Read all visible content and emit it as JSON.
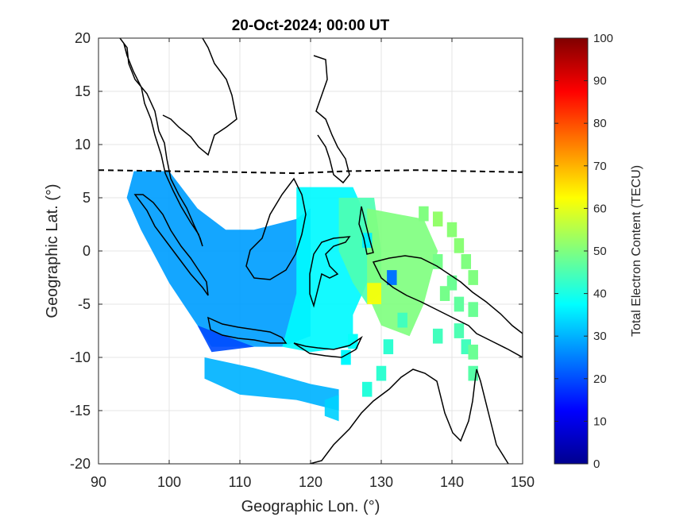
{
  "chart_data": {
    "type": "heatmap",
    "title": "20-Oct-2024; 00:00 UT",
    "xlabel": "Geographic Lon. (°)",
    "ylabel": "Geographic Lat. (°)",
    "xlim": [
      90,
      150
    ],
    "ylim": [
      -20,
      20
    ],
    "xticks": [
      "90",
      "100",
      "110",
      "120",
      "130",
      "140",
      "150"
    ],
    "yticks": [
      "20",
      "15",
      "10",
      "5",
      "0",
      "-5",
      "-10",
      "-15",
      "-20"
    ],
    "grid": true,
    "colorbar": {
      "label": "Total Electron Content (TECU)",
      "range": [
        0,
        100
      ],
      "ticks": [
        "100",
        "90",
        "80",
        "70",
        "60",
        "50",
        "40",
        "30",
        "20",
        "10",
        "0"
      ],
      "colormap": "jet"
    },
    "magnetic_equator_line": [
      [
        90,
        7.6
      ],
      [
        100,
        7.5
      ],
      [
        110,
        7.4
      ],
      [
        118,
        7.3
      ],
      [
        125,
        7.5
      ],
      [
        135,
        7.6
      ],
      [
        142,
        7.5
      ],
      [
        150,
        7.4
      ]
    ],
    "tec_regions": [
      {
        "poly": [
          [
            95,
            7.5
          ],
          [
            100,
            7.5
          ],
          [
            104,
            4
          ],
          [
            108,
            2
          ],
          [
            112,
            2
          ],
          [
            118,
            3
          ],
          [
            120,
            4
          ],
          [
            120,
            -8
          ],
          [
            116,
            -9
          ],
          [
            110,
            -9
          ],
          [
            106,
            -9
          ],
          [
            104,
            -7
          ],
          [
            100,
            -3
          ],
          [
            96,
            2
          ],
          [
            94,
            5
          ]
        ],
        "tecu": 28
      },
      {
        "poly": [
          [
            104,
            -7
          ],
          [
            108,
            -8
          ],
          [
            112,
            -9
          ],
          [
            106,
            -9.5
          ]
        ],
        "tecu": 20
      },
      {
        "poly": [
          [
            118,
            6
          ],
          [
            126,
            6
          ],
          [
            128,
            3
          ],
          [
            128,
            -3
          ],
          [
            126,
            -6
          ],
          [
            126,
            -9
          ],
          [
            120,
            -9.5
          ],
          [
            116,
            -9
          ],
          [
            118,
            -4
          ],
          [
            118,
            2
          ]
        ],
        "tecu": 37
      },
      {
        "poly": [
          [
            124,
            5
          ],
          [
            129,
            5
          ],
          [
            130,
            0
          ],
          [
            130,
            -4
          ],
          [
            128,
            -5
          ],
          [
            126,
            -3
          ],
          [
            124,
            0
          ]
        ],
        "tecu": 45
      },
      {
        "poly": [
          [
            128,
            4
          ],
          [
            136,
            3
          ],
          [
            138,
            0
          ],
          [
            136,
            -5
          ],
          [
            134,
            -8
          ],
          [
            130,
            -7
          ],
          [
            128,
            -4
          ],
          [
            128,
            0
          ]
        ],
        "tecu": 50
      },
      {
        "poly": [
          [
            128,
            -3
          ],
          [
            130,
            -3
          ],
          [
            130,
            -5
          ],
          [
            128,
            -5
          ]
        ],
        "tecu": 62
      },
      {
        "poly": [
          [
            105,
            -10
          ],
          [
            112,
            -11
          ],
          [
            120,
            -12.5
          ],
          [
            124,
            -13
          ],
          [
            124,
            -15
          ],
          [
            118,
            -14
          ],
          [
            110,
            -13.5
          ],
          [
            105,
            -12
          ]
        ],
        "tecu": 30
      },
      {
        "poly": [
          [
            122,
            -14
          ],
          [
            124,
            -13.5
          ],
          [
            124,
            -16
          ],
          [
            122,
            -15.5
          ]
        ],
        "tecu": 33
      }
    ],
    "tec_points": [
      {
        "lon": 136,
        "lat": 3.5,
        "tecu": 50
      },
      {
        "lon": 138,
        "lat": 3,
        "tecu": 52
      },
      {
        "lon": 140,
        "lat": 2,
        "tecu": 51
      },
      {
        "lon": 141,
        "lat": 0.5,
        "tecu": 51
      },
      {
        "lon": 142,
        "lat": -1,
        "tecu": 50
      },
      {
        "lon": 143,
        "lat": -2.5,
        "tecu": 50
      },
      {
        "lon": 138,
        "lat": -1,
        "tecu": 49
      },
      {
        "lon": 140,
        "lat": -3,
        "tecu": 48
      },
      {
        "lon": 139,
        "lat": -4,
        "tecu": 49
      },
      {
        "lon": 141,
        "lat": -5,
        "tecu": 47
      },
      {
        "lon": 143,
        "lat": -5.5,
        "tecu": 48
      },
      {
        "lon": 141,
        "lat": -7.5,
        "tecu": 45
      },
      {
        "lon": 142,
        "lat": -9,
        "tecu": 44
      },
      {
        "lon": 143,
        "lat": -9.5,
        "tecu": 48
      },
      {
        "lon": 143,
        "lat": -11.5,
        "tecu": 46
      },
      {
        "lon": 138,
        "lat": -8,
        "tecu": 44
      },
      {
        "lon": 133,
        "lat": -6.5,
        "tecu": 44
      },
      {
        "lon": 131,
        "lat": -9,
        "tecu": 42
      },
      {
        "lon": 130,
        "lat": -11.5,
        "tecu": 42
      },
      {
        "lon": 128,
        "lat": -13,
        "tecu": 41
      },
      {
        "lon": 126,
        "lat": -8.5,
        "tecu": 38
      },
      {
        "lon": 125,
        "lat": -10,
        "tecu": 37
      },
      {
        "lon": 128,
        "lat": 1,
        "tecu": 36
      },
      {
        "lon": 131.5,
        "lat": -2.5,
        "tecu": 24
      }
    ]
  }
}
